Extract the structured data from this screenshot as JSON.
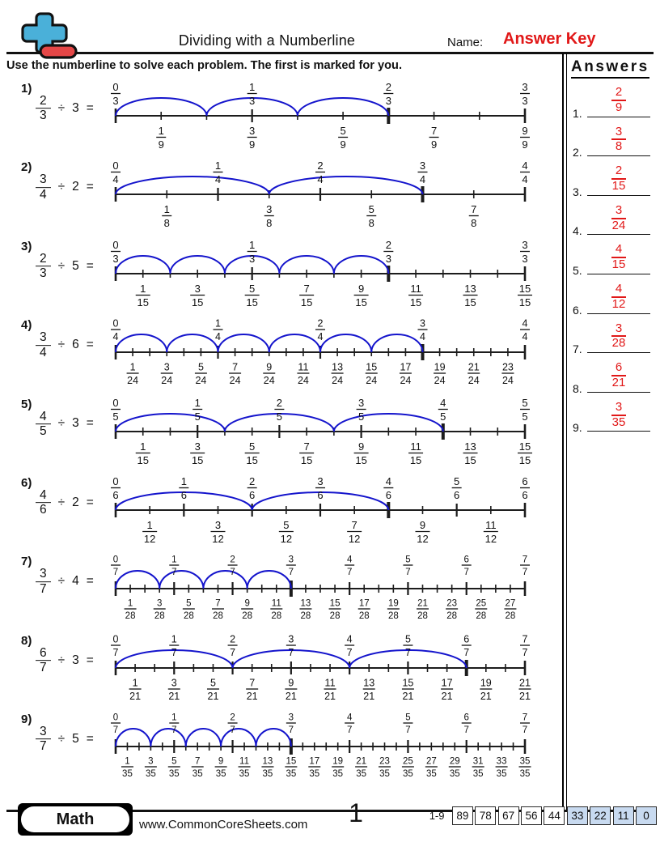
{
  "header": {
    "title": "Dividing with a Numberline",
    "name_label": "Name:",
    "name_value": "Answer Key"
  },
  "instructions": "Use the numberline to solve each problem. The first is marked for you.",
  "colors": {
    "accent_red": "#e11818",
    "arc_blue": "#1414cc",
    "ink": "#1c1c1c",
    "score_highlight": "#c8daf0",
    "logo_blue": "#4ab0d9",
    "logo_red": "#e54747"
  },
  "answers_panel": {
    "title": "Answers",
    "items": [
      {
        "label": "1.",
        "fraction": {
          "num": "2",
          "den": "9"
        }
      },
      {
        "label": "2.",
        "fraction": {
          "num": "3",
          "den": "8"
        }
      },
      {
        "label": "3.",
        "fraction": {
          "num": "2",
          "den": "15"
        }
      },
      {
        "label": "4.",
        "fraction": {
          "num": "3",
          "den": "24"
        }
      },
      {
        "label": "5.",
        "fraction": {
          "num": "4",
          "den": "15"
        }
      },
      {
        "label": "6.",
        "fraction": {
          "num": "4",
          "den": "12"
        }
      },
      {
        "label": "7.",
        "fraction": {
          "num": "3",
          "den": "28"
        }
      },
      {
        "label": "8.",
        "fraction": {
          "num": "6",
          "den": "21"
        }
      },
      {
        "label": "9.",
        "fraction": {
          "num": "3",
          "den": "35"
        }
      }
    ]
  },
  "problems": [
    {
      "num_label": "1)",
      "dividend": {
        "num": "2",
        "den": "3"
      },
      "op": "÷",
      "divisor": "3",
      "eq": "=",
      "numberline": {
        "subdivisions": 9,
        "jump_size": 2,
        "jump_count": 3,
        "top_labels": [
          {
            "num": "0",
            "den": "3"
          },
          {
            "num": "1",
            "den": "3"
          },
          {
            "num": "2",
            "den": "3"
          },
          {
            "num": "3",
            "den": "3"
          }
        ],
        "bottom_labels": [
          {
            "num": "1",
            "den": "9"
          },
          {
            "num": "3",
            "den": "9"
          },
          {
            "num": "5",
            "den": "9"
          },
          {
            "num": "7",
            "den": "9"
          },
          {
            "num": "9",
            "den": "9"
          }
        ]
      }
    },
    {
      "num_label": "2)",
      "dividend": {
        "num": "3",
        "den": "4"
      },
      "op": "÷",
      "divisor": "2",
      "eq": "=",
      "numberline": {
        "subdivisions": 8,
        "jump_size": 3,
        "jump_count": 2,
        "top_labels": [
          {
            "num": "0",
            "den": "4"
          },
          {
            "num": "1",
            "den": "4"
          },
          {
            "num": "2",
            "den": "4"
          },
          {
            "num": "3",
            "den": "4"
          },
          {
            "num": "4",
            "den": "4"
          }
        ],
        "bottom_labels": [
          {
            "num": "1",
            "den": "8"
          },
          {
            "num": "3",
            "den": "8"
          },
          {
            "num": "5",
            "den": "8"
          },
          {
            "num": "7",
            "den": "8"
          }
        ]
      }
    },
    {
      "num_label": "3)",
      "dividend": {
        "num": "2",
        "den": "3"
      },
      "op": "÷",
      "divisor": "5",
      "eq": "=",
      "numberline": {
        "subdivisions": 15,
        "jump_size": 2,
        "jump_count": 5,
        "top_labels": [
          {
            "num": "0",
            "den": "3"
          },
          {
            "num": "1",
            "den": "3"
          },
          {
            "num": "2",
            "den": "3"
          },
          {
            "num": "3",
            "den": "3"
          }
        ],
        "bottom_labels": [
          {
            "num": "1",
            "den": "15"
          },
          {
            "num": "3",
            "den": "15"
          },
          {
            "num": "5",
            "den": "15"
          },
          {
            "num": "7",
            "den": "15"
          },
          {
            "num": "9",
            "den": "15"
          },
          {
            "num": "11",
            "den": "15"
          },
          {
            "num": "13",
            "den": "15"
          },
          {
            "num": "15",
            "den": "15"
          }
        ]
      }
    },
    {
      "num_label": "4)",
      "dividend": {
        "num": "3",
        "den": "4"
      },
      "op": "÷",
      "divisor": "6",
      "eq": "=",
      "numberline": {
        "subdivisions": 24,
        "jump_size": 3,
        "jump_count": 6,
        "top_labels": [
          {
            "num": "0",
            "den": "4"
          },
          {
            "num": "1",
            "den": "4"
          },
          {
            "num": "2",
            "den": "4"
          },
          {
            "num": "3",
            "den": "4"
          },
          {
            "num": "4",
            "den": "4"
          }
        ],
        "bottom_labels": [
          {
            "num": "1",
            "den": "24"
          },
          {
            "num": "3",
            "den": "24"
          },
          {
            "num": "5",
            "den": "24"
          },
          {
            "num": "7",
            "den": "24"
          },
          {
            "num": "9",
            "den": "24"
          },
          {
            "num": "11",
            "den": "24"
          },
          {
            "num": "13",
            "den": "24"
          },
          {
            "num": "15",
            "den": "24"
          },
          {
            "num": "17",
            "den": "24"
          },
          {
            "num": "19",
            "den": "24"
          },
          {
            "num": "21",
            "den": "24"
          },
          {
            "num": "23",
            "den": "24"
          }
        ]
      }
    },
    {
      "num_label": "5)",
      "dividend": {
        "num": "4",
        "den": "5"
      },
      "op": "÷",
      "divisor": "3",
      "eq": "=",
      "numberline": {
        "subdivisions": 15,
        "jump_size": 4,
        "jump_count": 3,
        "top_labels": [
          {
            "num": "0",
            "den": "5"
          },
          {
            "num": "1",
            "den": "5"
          },
          {
            "num": "2",
            "den": "5"
          },
          {
            "num": "3",
            "den": "5"
          },
          {
            "num": "4",
            "den": "5"
          },
          {
            "num": "5",
            "den": "5"
          }
        ],
        "bottom_labels": [
          {
            "num": "1",
            "den": "15"
          },
          {
            "num": "3",
            "den": "15"
          },
          {
            "num": "5",
            "den": "15"
          },
          {
            "num": "7",
            "den": "15"
          },
          {
            "num": "9",
            "den": "15"
          },
          {
            "num": "11",
            "den": "15"
          },
          {
            "num": "13",
            "den": "15"
          },
          {
            "num": "15",
            "den": "15"
          }
        ]
      }
    },
    {
      "num_label": "6)",
      "dividend": {
        "num": "4",
        "den": "6"
      },
      "op": "÷",
      "divisor": "2",
      "eq": "=",
      "numberline": {
        "subdivisions": 12,
        "jump_size": 4,
        "jump_count": 2,
        "top_labels": [
          {
            "num": "0",
            "den": "6"
          },
          {
            "num": "1",
            "den": "6"
          },
          {
            "num": "2",
            "den": "6"
          },
          {
            "num": "3",
            "den": "6"
          },
          {
            "num": "4",
            "den": "6"
          },
          {
            "num": "5",
            "den": "6"
          },
          {
            "num": "6",
            "den": "6"
          }
        ],
        "bottom_labels": [
          {
            "num": "1",
            "den": "12"
          },
          {
            "num": "3",
            "den": "12"
          },
          {
            "num": "5",
            "den": "12"
          },
          {
            "num": "7",
            "den": "12"
          },
          {
            "num": "9",
            "den": "12"
          },
          {
            "num": "11",
            "den": "12"
          }
        ]
      }
    },
    {
      "num_label": "7)",
      "dividend": {
        "num": "3",
        "den": "7"
      },
      "op": "÷",
      "divisor": "4",
      "eq": "=",
      "numberline": {
        "subdivisions": 28,
        "jump_size": 3,
        "jump_count": 4,
        "top_labels": [
          {
            "num": "0",
            "den": "7"
          },
          {
            "num": "1",
            "den": "7"
          },
          {
            "num": "2",
            "den": "7"
          },
          {
            "num": "3",
            "den": "7"
          },
          {
            "num": "4",
            "den": "7"
          },
          {
            "num": "5",
            "den": "7"
          },
          {
            "num": "6",
            "den": "7"
          },
          {
            "num": "7",
            "den": "7"
          }
        ],
        "bottom_labels": [
          {
            "num": "1",
            "den": "28"
          },
          {
            "num": "3",
            "den": "28"
          },
          {
            "num": "5",
            "den": "28"
          },
          {
            "num": "7",
            "den": "28"
          },
          {
            "num": "9",
            "den": "28"
          },
          {
            "num": "11",
            "den": "28"
          },
          {
            "num": "13",
            "den": "28"
          },
          {
            "num": "15",
            "den": "28"
          },
          {
            "num": "17",
            "den": "28"
          },
          {
            "num": "19",
            "den": "28"
          },
          {
            "num": "21",
            "den": "28"
          },
          {
            "num": "23",
            "den": "28"
          },
          {
            "num": "25",
            "den": "28"
          },
          {
            "num": "27",
            "den": "28"
          }
        ]
      }
    },
    {
      "num_label": "8)",
      "dividend": {
        "num": "6",
        "den": "7"
      },
      "op": "÷",
      "divisor": "3",
      "eq": "=",
      "numberline": {
        "subdivisions": 21,
        "jump_size": 6,
        "jump_count": 3,
        "top_labels": [
          {
            "num": "0",
            "den": "7"
          },
          {
            "num": "1",
            "den": "7"
          },
          {
            "num": "2",
            "den": "7"
          },
          {
            "num": "3",
            "den": "7"
          },
          {
            "num": "4",
            "den": "7"
          },
          {
            "num": "5",
            "den": "7"
          },
          {
            "num": "6",
            "den": "7"
          },
          {
            "num": "7",
            "den": "7"
          }
        ],
        "bottom_labels": [
          {
            "num": "1",
            "den": "21"
          },
          {
            "num": "3",
            "den": "21"
          },
          {
            "num": "5",
            "den": "21"
          },
          {
            "num": "7",
            "den": "21"
          },
          {
            "num": "9",
            "den": "21"
          },
          {
            "num": "11",
            "den": "21"
          },
          {
            "num": "13",
            "den": "21"
          },
          {
            "num": "15",
            "den": "21"
          },
          {
            "num": "17",
            "den": "21"
          },
          {
            "num": "19",
            "den": "21"
          },
          {
            "num": "21",
            "den": "21"
          }
        ]
      }
    },
    {
      "num_label": "9)",
      "dividend": {
        "num": "3",
        "den": "7"
      },
      "op": "÷",
      "divisor": "5",
      "eq": "=",
      "numberline": {
        "subdivisions": 35,
        "jump_size": 3,
        "jump_count": 5,
        "top_labels": [
          {
            "num": "0",
            "den": "7"
          },
          {
            "num": "1",
            "den": "7"
          },
          {
            "num": "2",
            "den": "7"
          },
          {
            "num": "3",
            "den": "7"
          },
          {
            "num": "4",
            "den": "7"
          },
          {
            "num": "5",
            "den": "7"
          },
          {
            "num": "6",
            "den": "7"
          },
          {
            "num": "7",
            "den": "7"
          }
        ],
        "bottom_labels": [
          {
            "num": "1",
            "den": "35"
          },
          {
            "num": "3",
            "den": "35"
          },
          {
            "num": "5",
            "den": "35"
          },
          {
            "num": "7",
            "den": "35"
          },
          {
            "num": "9",
            "den": "35"
          },
          {
            "num": "11",
            "den": "35"
          },
          {
            "num": "13",
            "den": "35"
          },
          {
            "num": "15",
            "den": "35"
          },
          {
            "num": "17",
            "den": "35"
          },
          {
            "num": "19",
            "den": "35"
          },
          {
            "num": "21",
            "den": "35"
          },
          {
            "num": "23",
            "den": "35"
          },
          {
            "num": "25",
            "den": "35"
          },
          {
            "num": "27",
            "den": "35"
          },
          {
            "num": "29",
            "den": "35"
          },
          {
            "num": "31",
            "den": "35"
          },
          {
            "num": "33",
            "den": "35"
          },
          {
            "num": "35",
            "den": "35"
          }
        ]
      }
    }
  ],
  "footer": {
    "subject": "Math",
    "website": "www.CommonCoreSheets.com",
    "page_number": "1",
    "range_label": "1-9",
    "scores": [
      "89",
      "78",
      "67",
      "56",
      "44",
      "33",
      "22",
      "11",
      "0"
    ],
    "highlight_from": 5
  }
}
